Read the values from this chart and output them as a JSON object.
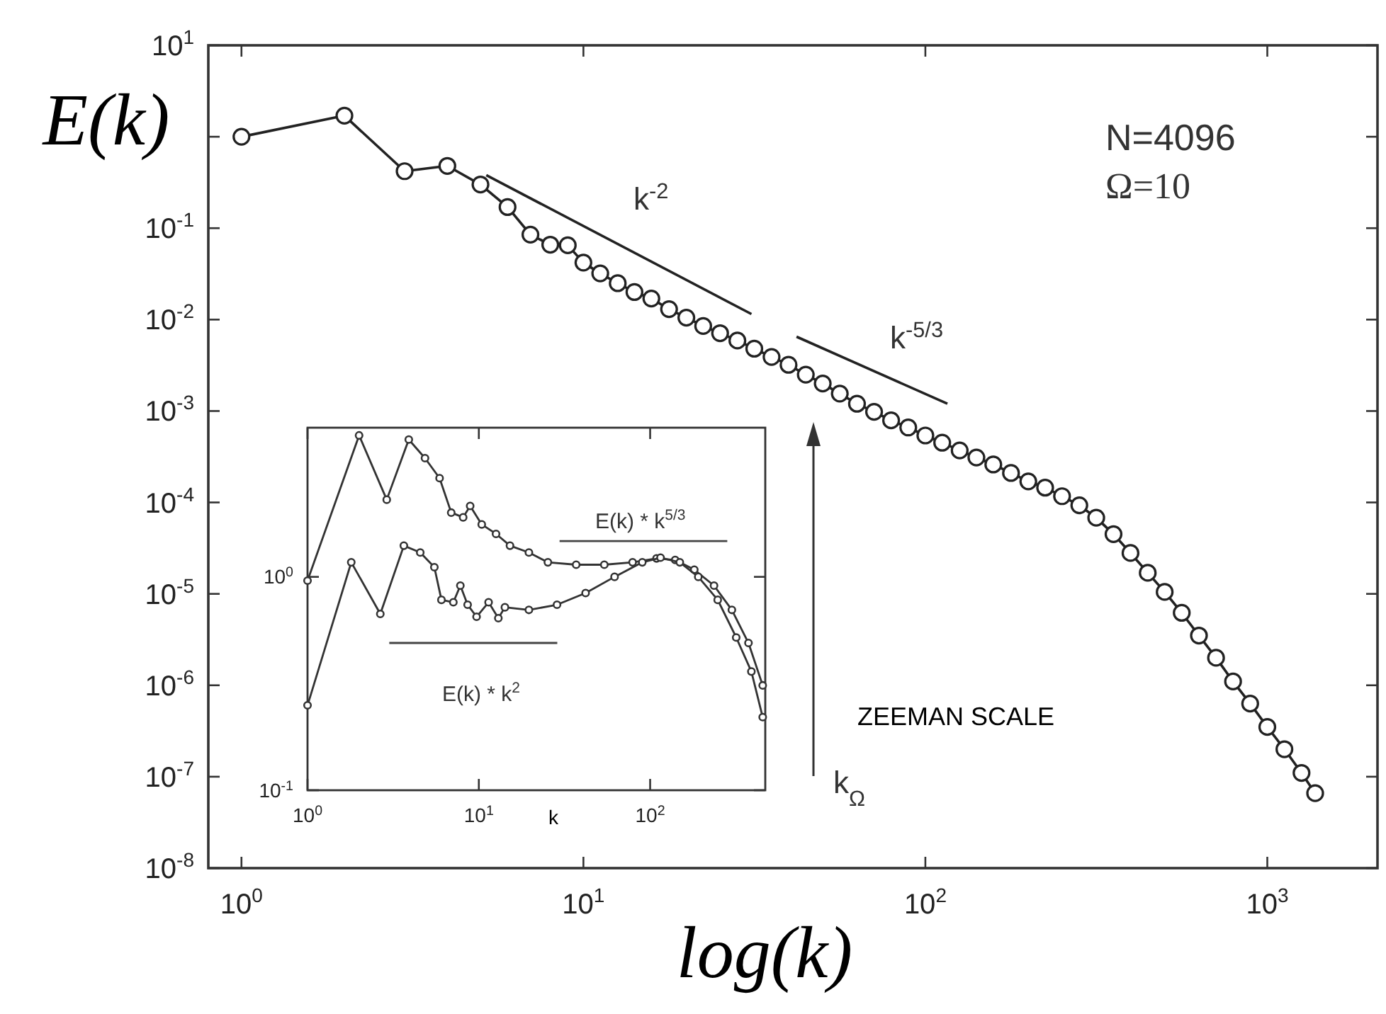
{
  "chart_data": [
    {
      "type": "line",
      "xlabel": "log(k)",
      "ylabel": "E(k)",
      "log": "xy",
      "marker": "circle",
      "grid": false,
      "xlim": [
        0.8,
        2100
      ],
      "ylim": [
        1e-08,
        10
      ],
      "xticks": [
        {
          "value": 1,
          "label": "10$^{0}$"
        },
        {
          "value": 10,
          "label": "10$^{1}$"
        },
        {
          "value": 100,
          "label": "10$^{2}$"
        },
        {
          "value": 1000,
          "label": "10$^{3}$"
        }
      ],
      "yticks": [
        {
          "value": 1e-08,
          "label": "10$^{-8}$"
        },
        {
          "value": 1e-07,
          "label": "10$^{-7}$"
        },
        {
          "value": 1e-06,
          "label": "10$^{-6}$"
        },
        {
          "value": 1e-05,
          "label": "10$^{-5}$"
        },
        {
          "value": 0.0001,
          "label": "10$^{-4}$"
        },
        {
          "value": 0.001,
          "label": "10$^{-3}$"
        },
        {
          "value": 0.01,
          "label": "10$^{-2}$"
        },
        {
          "value": 0.1,
          "label": "10$^{-1}$"
        },
        {
          "value": 1,
          "label": null
        },
        {
          "value": 10,
          "label": "10$^{1}$"
        }
      ],
      "series": [
        {
          "color": "#222222",
          "x": [
            1,
            2,
            3,
            4,
            5,
            6,
            7,
            8,
            9,
            10,
            11.2,
            12.6,
            14.1,
            15.8,
            17.8,
            20,
            22.4,
            25.1,
            28.2,
            31.6,
            35.5,
            39.8,
            44.7,
            50.1,
            56.2,
            63.1,
            70.8,
            79.4,
            89.1,
            100,
            112,
            126,
            141,
            158,
            178,
            200,
            224,
            251,
            282,
            316,
            355,
            398,
            447,
            501,
            562,
            631,
            708,
            794,
            891,
            1000,
            1122,
            1259,
            1380
          ],
          "values": [
            1.0,
            1.7,
            0.42,
            0.48,
            0.3,
            0.17,
            0.085,
            0.066,
            0.065,
            0.042,
            0.032,
            0.025,
            0.02,
            0.017,
            0.013,
            0.0105,
            0.0085,
            0.0071,
            0.0059,
            0.0048,
            0.0039,
            0.0032,
            0.0025,
            0.002,
            0.00155,
            0.0012,
            0.00098,
            0.00079,
            0.00066,
            0.00054,
            0.00045,
            0.00037,
            0.00031,
            0.00026,
            0.00021,
            0.00017,
            0.000145,
            0.000117,
            9.3e-05,
            6.8e-05,
            4.5e-05,
            2.8e-05,
            1.7e-05,
            1.05e-05,
            6.2e-06,
            3.5e-06,
            2e-06,
            1.1e-06,
            6.3e-07,
            3.5e-07,
            2e-07,
            1.1e-07,
            6.6e-08
          ]
        },
        {
          "type": "line",
          "marker": "none",
          "color": "#222222",
          "x": [
            5.2,
            31
          ],
          "values": [
            0.38,
            0.0115
          ]
        },
        {
          "type": "line",
          "marker": "none",
          "color": "#222222",
          "x": [
            42,
            116
          ],
          "values": [
            0.0065,
            0.0012
          ]
        }
      ],
      "annotations": [
        "k$^{-2}$",
        "k$^{-5/3}$",
        "k$_{Ω}$",
        "N=4096",
        "Ω=10",
        "ZEEMAN SCALE"
      ]
    },
    {
      "type": "line",
      "xlabel": "k",
      "log": "xy",
      "marker": "circle",
      "grid": false,
      "xlim": [
        1,
        470
      ],
      "ylim": [
        0.1,
        5
      ],
      "xticks": [
        {
          "value": 1,
          "label": "10$^{0}$"
        },
        {
          "value": 10,
          "label": "10$^{1}$"
        },
        {
          "value": 100,
          "label": "10$^{2}$"
        }
      ],
      "yticks": [
        {
          "value": 0.1,
          "label": "10$^{-1}$"
        },
        {
          "value": 1,
          "label": "10$^{0}$"
        }
      ],
      "series": [
        {
          "color": "#333333",
          "x": [
            1,
            2,
            2.9,
            3.9,
            4.85,
            5.9,
            6.9,
            8.1,
            8.9,
            10.4,
            12.6,
            15.2,
            19.6,
            25.3,
            37,
            54,
            79,
            109,
            140,
            181,
            236,
            300,
            375,
            454
          ],
          "values": [
            0.96,
            4.6,
            2.3,
            4.4,
            3.6,
            2.9,
            2.0,
            1.9,
            2.15,
            1.76,
            1.59,
            1.4,
            1.3,
            1.17,
            1.14,
            1.14,
            1.17,
            1.22,
            1.2,
            1.08,
            0.91,
            0.7,
            0.49,
            0.31
          ]
        },
        {
          "color": "#333333",
          "x": [
            1,
            1.8,
            2.66,
            3.65,
            4.55,
            5.5,
            6.05,
            7.1,
            7.8,
            8.6,
            9.7,
            11.4,
            13,
            14.2,
            19.6,
            28.6,
            42,
            62,
            90,
            115,
            149,
            191,
            248,
            318,
            390,
            454
          ],
          "values": [
            0.25,
            1.17,
            0.67,
            1.4,
            1.3,
            1.11,
            0.78,
            0.76,
            0.91,
            0.74,
            0.65,
            0.76,
            0.64,
            0.72,
            0.7,
            0.74,
            0.84,
            1.0,
            1.17,
            1.23,
            1.17,
            1.0,
            0.78,
            0.52,
            0.36,
            0.22
          ]
        },
        {
          "type": "line",
          "marker": "none",
          "color": "#444444",
          "x": [
            29.6,
            282
          ],
          "values": [
            1.47,
            1.47
          ]
        },
        {
          "type": "line",
          "marker": "none",
          "color": "#444444",
          "x": [
            3.0,
            28.7
          ],
          "values": [
            0.49,
            0.49
          ]
        }
      ],
      "annotations": [
        "E(k) * k$^{5/3}$",
        "E(k) * k$^{2}$"
      ]
    }
  ]
}
